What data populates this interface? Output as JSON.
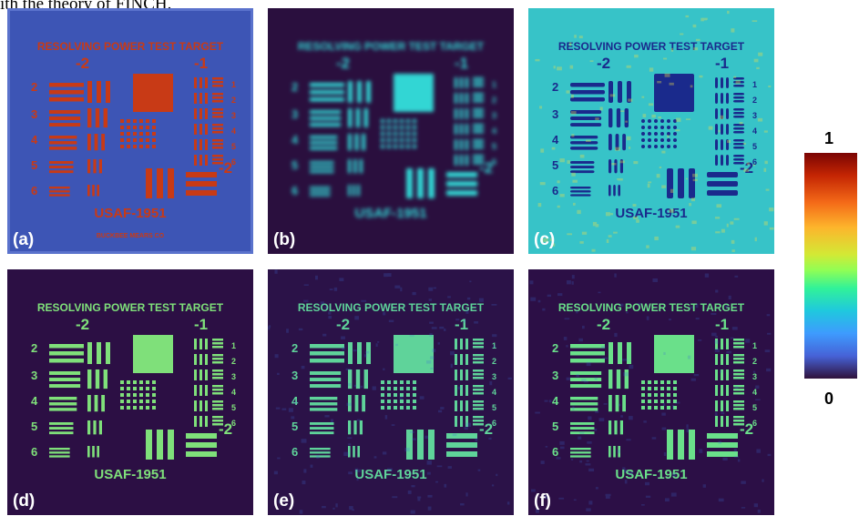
{
  "caption": "ith the theory of FINCH.",
  "panels": [
    {
      "label": "(a)",
      "title": "RESOLVING POWER TEST TARGET",
      "footer": "USAF-1951",
      "maker": "BUCKBEE MEARS CO"
    },
    {
      "label": "(b)",
      "title": "RESOLVING POWER TEST TARGET",
      "footer": "USAF-1951"
    },
    {
      "label": "(c)",
      "title": "RESOLVING POWER TEST TARGET",
      "footer": "USAF-1951"
    },
    {
      "label": "(d)",
      "title": "RESOLVING POWER TEST TARGET",
      "footer": "USAF-1951"
    },
    {
      "label": "(e)",
      "title": "RESOLVING POWER TEST TARGET",
      "footer": "USAF-1951"
    },
    {
      "label": "(f)",
      "title": "RESOLVING POWER TEST TARGET",
      "footer": "USAF-1951"
    }
  ],
  "target_labels": {
    "group_left": "-2",
    "group_right": "-1",
    "group_lower": "-2",
    "left_numbers": [
      "2",
      "3",
      "4",
      "5",
      "6"
    ],
    "right_numbers": [
      "1",
      "2",
      "3",
      "4",
      "5",
      "6"
    ]
  },
  "colorbar": {
    "max_label": "1",
    "min_label": "0",
    "colormap": "turbo"
  },
  "colors": {
    "bg_a": "#3d55b5",
    "fg_a": "#c83a16",
    "bg_b": "#2a0f3e",
    "fg_b": "#33d6d4",
    "bg_c": "#37c3c8",
    "fg_c": "#1a2a8c",
    "bg_d": "#2c0f44",
    "fg_d": "#7fe07a",
    "bg_e": "#2b1248",
    "fg_e": "#5fd39a",
    "bg_f": "#2c0f46",
    "fg_f": "#6ae08a"
  }
}
